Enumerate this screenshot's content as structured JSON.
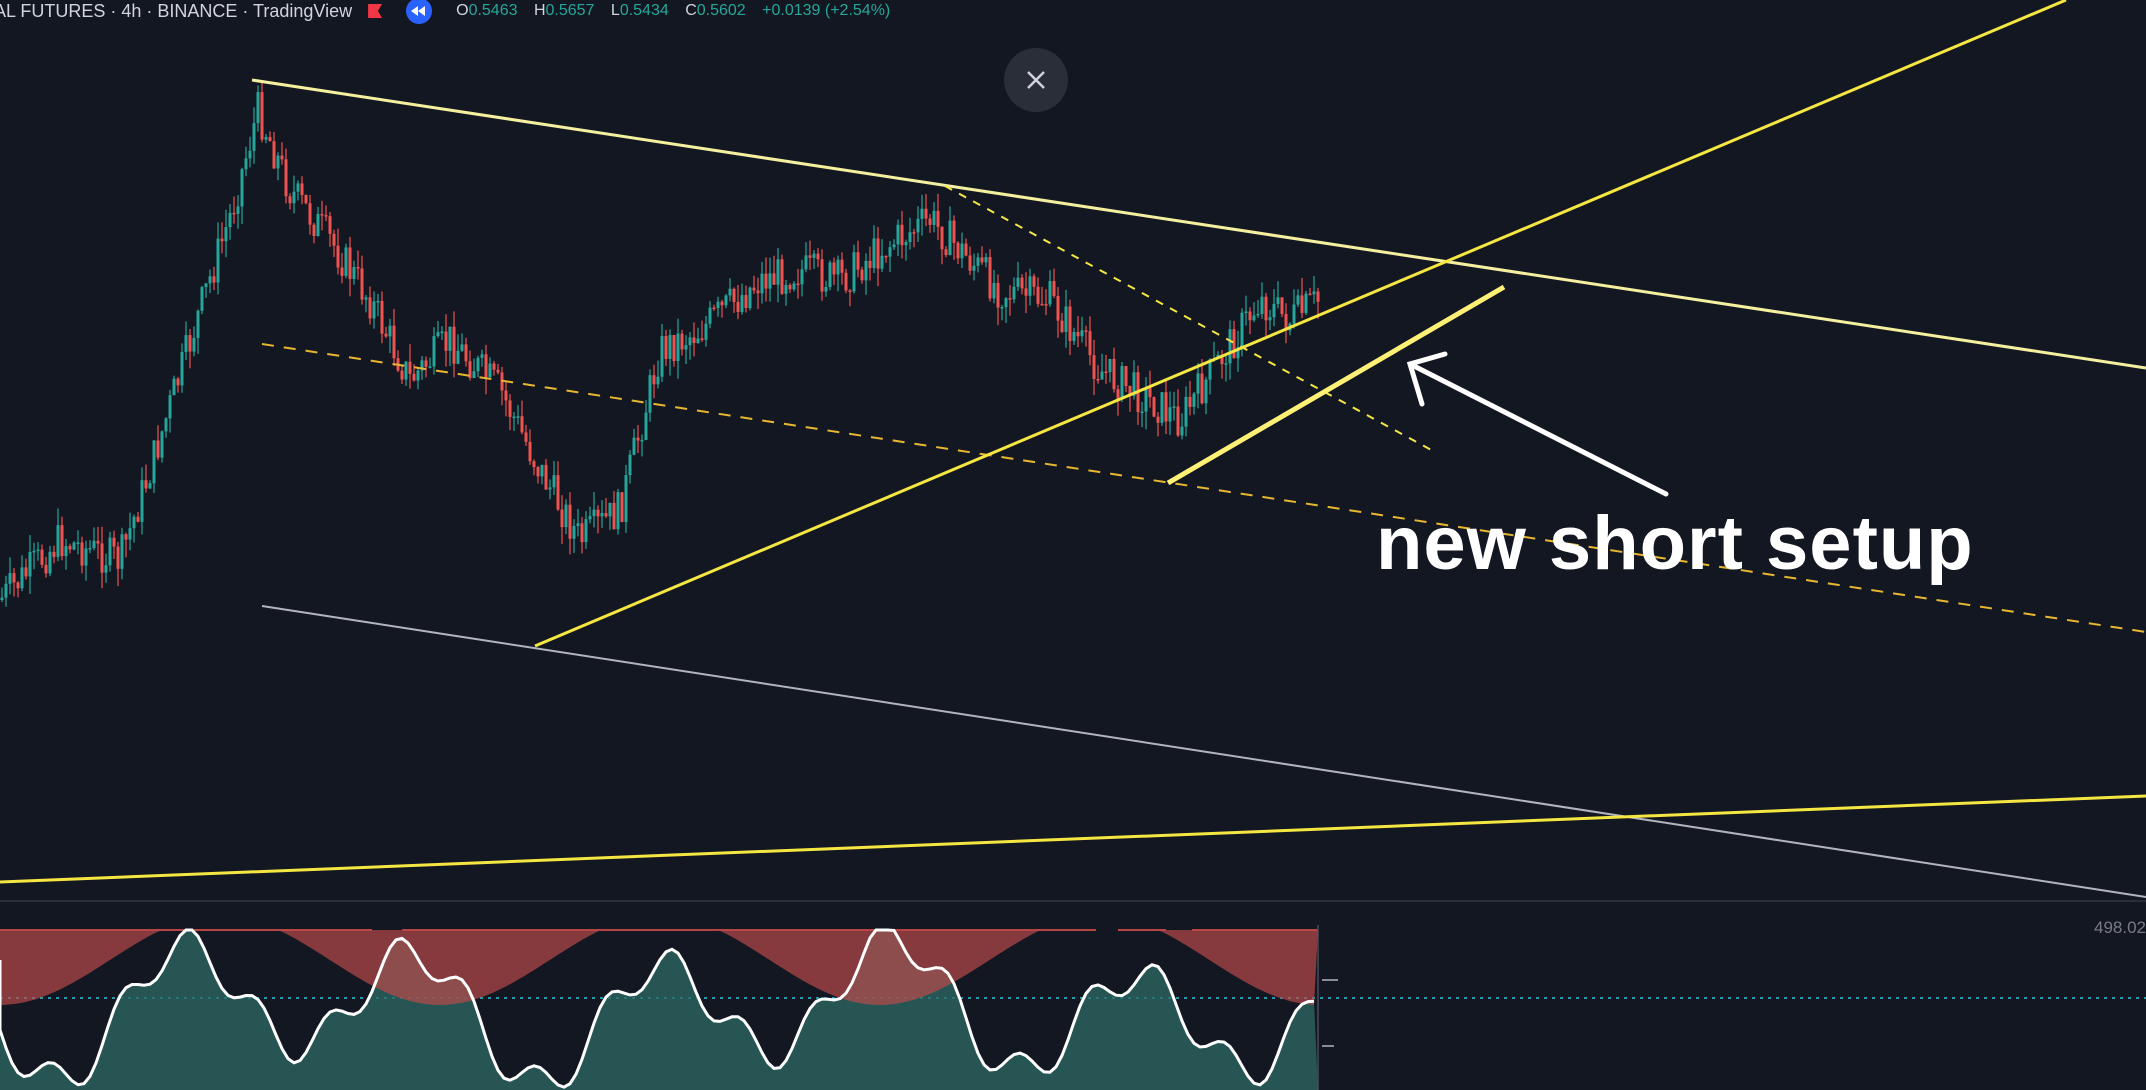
{
  "header": {
    "symbol": "AL FUTURES · 4h · BINANCE · TradingView",
    "ohlc": {
      "o_key": "O",
      "o": "0.5463",
      "h_key": "H",
      "h": "0.5657",
      "l_key": "L",
      "l": "0.5434",
      "c_key": "C",
      "c": "0.5602",
      "change": "+0.0139 (+2.54%)"
    }
  },
  "annotation": {
    "text": "new short setup"
  },
  "indicator": {
    "axis_value": "498.02"
  },
  "icons": [
    "flag-icon",
    "replay-icon",
    "close-icon",
    "arrow-icon"
  ],
  "colors": {
    "background": "#131722",
    "up": "#26a69a",
    "down": "#ef5350",
    "trendline": "#f5e642",
    "dashed": "#e8b730",
    "channel": "#b2b5be"
  }
}
